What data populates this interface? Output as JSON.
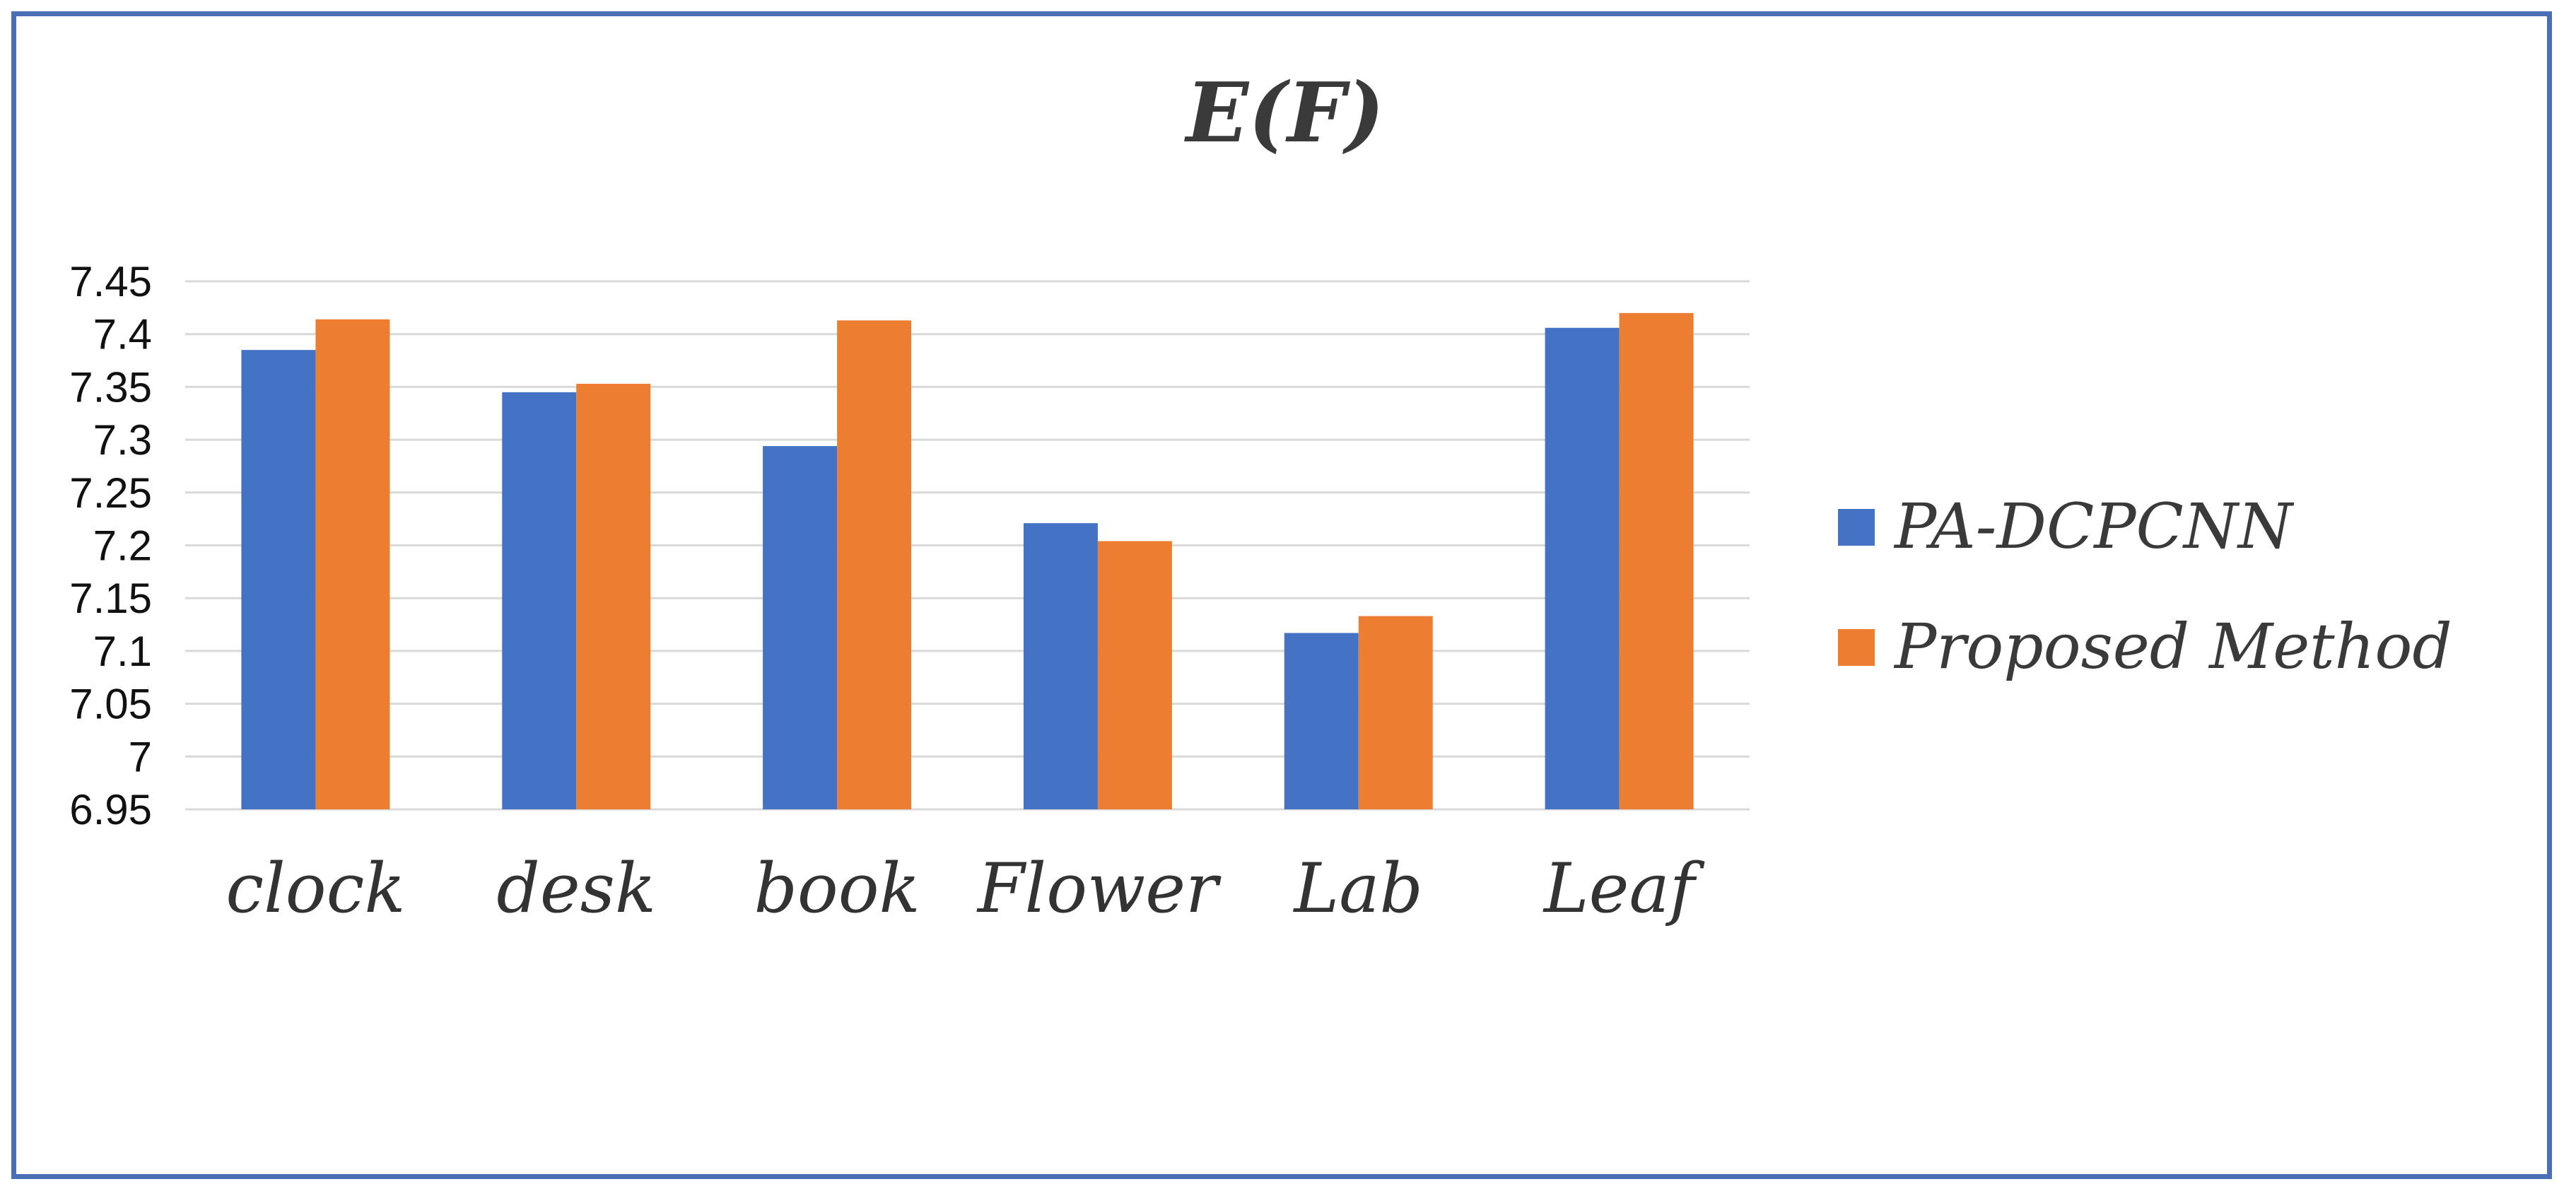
{
  "chart_data": {
    "type": "bar",
    "title": "E(F)",
    "xlabel": "",
    "ylabel": "",
    "categories": [
      "clock",
      "desk",
      "book",
      "Flower",
      "Lab",
      "Leaf"
    ],
    "series": [
      {
        "name": "PA-DCPCNN",
        "color": "#4472c4",
        "values": [
          7.385,
          7.345,
          7.294,
          7.221,
          7.117,
          7.406
        ]
      },
      {
        "name": "Proposed Method",
        "color": "#ed7d31",
        "values": [
          7.414,
          7.353,
          7.413,
          7.204,
          7.133,
          7.42
        ]
      }
    ],
    "ylim": [
      6.95,
      7.45
    ],
    "yticks": [
      6.95,
      7,
      7.05,
      7.1,
      7.15,
      7.2,
      7.25,
      7.3,
      7.35,
      7.4,
      7.45
    ],
    "grid": true,
    "legend": "right"
  }
}
